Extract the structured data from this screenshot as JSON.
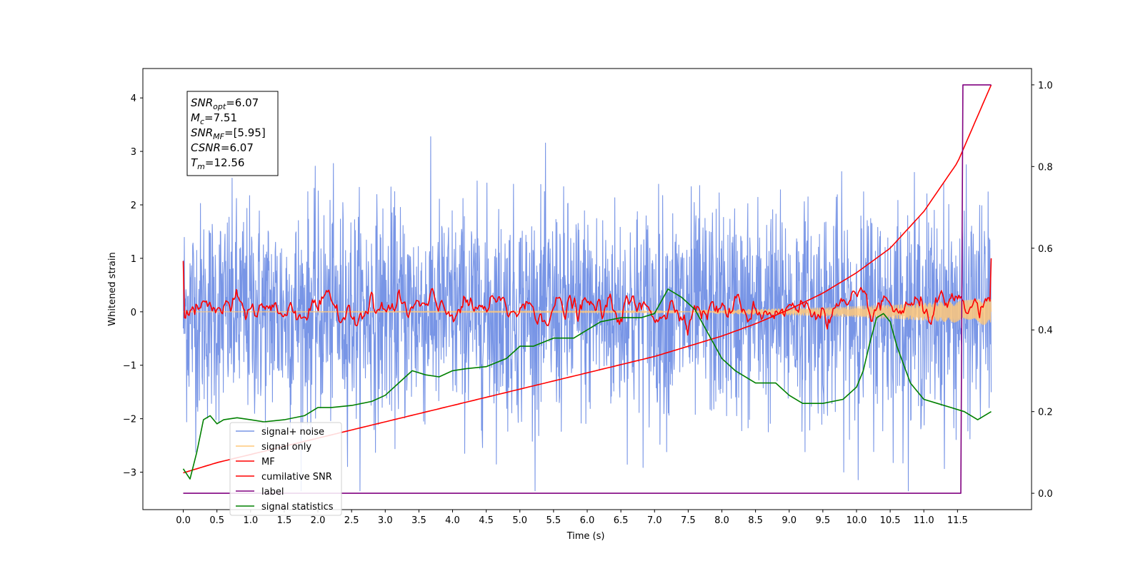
{
  "chart_data": {
    "type": "line",
    "title": "",
    "xlabel": "Time (s)",
    "ylabel": "Whitened strain",
    "xlim": [
      -0.6,
      12.6
    ],
    "ylim": [
      -3.7,
      4.55
    ],
    "y2lim": [
      -0.04,
      1.04
    ],
    "xticks": [
      "0.0",
      "0.5",
      "1.0",
      "1.5",
      "2.0",
      "2.5",
      "3.0",
      "3.5",
      "4.0",
      "4.5",
      "5.0",
      "5.5",
      "6.0",
      "6.5",
      "7.0",
      "7.5",
      "8.0",
      "8.5",
      "9.0",
      "9.5",
      "10.0",
      "10.5",
      "11.0",
      "11.5"
    ],
    "yticks": [
      "−3",
      "−2",
      "−1",
      "0",
      "1",
      "2",
      "3",
      "4"
    ],
    "y2ticks": [
      "0.0",
      "0.2",
      "0.4",
      "0.6",
      "0.8",
      "1.0"
    ],
    "legend_position": "lower-left",
    "annotation": {
      "lines": [
        {
          "sym": "SNR",
          "sub": "opt",
          "val": "=6.07"
        },
        {
          "sym": "M",
          "sub": "c",
          "val": "=7.51"
        },
        {
          "sym": "SNR",
          "sub": "MF",
          "val": "=[5.95]"
        },
        {
          "sym": "CSNR",
          "sub": "",
          "val": "=6.07"
        },
        {
          "sym": "T",
          "sub": "m",
          "val": "=12.56"
        }
      ]
    },
    "series": [
      {
        "name": "signal+ noise",
        "color": "#7895e6",
        "axis": "left",
        "kind": "noise",
        "x_range": [
          0,
          12
        ],
        "amplitude": 1.0
      },
      {
        "name": "signal only",
        "color": "#ffc87a",
        "axis": "left",
        "kind": "chirp",
        "x_range": [
          0,
          12
        ],
        "envelope_x": [
          0,
          7.5,
          9,
          10,
          11,
          11.5,
          12
        ],
        "envelope_y": [
          0.0,
          0.02,
          0.06,
          0.1,
          0.16,
          0.2,
          0.25
        ]
      },
      {
        "name": "MF",
        "color": "#ff0000",
        "axis": "left",
        "kind": "mf",
        "x_range": [
          0,
          12
        ]
      },
      {
        "name": "cumilative SNR",
        "color": "#ff0000",
        "axis": "right",
        "x": [
          0,
          0.5,
          1,
          1.5,
          2,
          2.5,
          3,
          3.5,
          4,
          4.5,
          5,
          5.5,
          6,
          6.5,
          7,
          7.5,
          8,
          8.5,
          9,
          9.5,
          10,
          10.5,
          11,
          11.5,
          12
        ],
        "y": [
          0.05,
          0.075,
          0.095,
          0.115,
          0.135,
          0.155,
          0.175,
          0.195,
          0.215,
          0.235,
          0.255,
          0.275,
          0.295,
          0.315,
          0.335,
          0.36,
          0.385,
          0.415,
          0.45,
          0.49,
          0.54,
          0.6,
          0.69,
          0.81,
          1.0
        ]
      },
      {
        "name": "label",
        "color": "#800080",
        "axis": "right",
        "x": [
          0,
          11.55,
          11.58,
          12
        ],
        "y": [
          0,
          0,
          1,
          1
        ]
      },
      {
        "name": "signal statistics",
        "color": "#008000",
        "axis": "right",
        "x": [
          0,
          0.1,
          0.2,
          0.3,
          0.4,
          0.5,
          0.6,
          0.8,
          1.0,
          1.2,
          1.5,
          1.8,
          2.0,
          2.2,
          2.5,
          2.8,
          3.0,
          3.2,
          3.4,
          3.6,
          3.8,
          4.0,
          4.2,
          4.5,
          4.8,
          5.0,
          5.2,
          5.5,
          5.8,
          6.0,
          6.2,
          6.5,
          6.8,
          7.0,
          7.2,
          7.4,
          7.6,
          7.8,
          8.0,
          8.2,
          8.5,
          8.8,
          9.0,
          9.2,
          9.5,
          9.8,
          10.0,
          10.1,
          10.2,
          10.3,
          10.4,
          10.5,
          10.6,
          10.8,
          11.0,
          11.2,
          11.4,
          11.6,
          11.8,
          12.0
        ],
        "y": [
          0.06,
          0.035,
          0.1,
          0.18,
          0.19,
          0.17,
          0.18,
          0.185,
          0.18,
          0.175,
          0.18,
          0.19,
          0.21,
          0.21,
          0.215,
          0.225,
          0.24,
          0.27,
          0.3,
          0.29,
          0.285,
          0.3,
          0.305,
          0.31,
          0.33,
          0.36,
          0.36,
          0.38,
          0.38,
          0.4,
          0.42,
          0.43,
          0.43,
          0.44,
          0.5,
          0.48,
          0.45,
          0.39,
          0.33,
          0.3,
          0.27,
          0.27,
          0.24,
          0.22,
          0.22,
          0.23,
          0.26,
          0.3,
          0.37,
          0.43,
          0.44,
          0.42,
          0.36,
          0.27,
          0.23,
          0.22,
          0.21,
          0.2,
          0.18,
          0.2
        ]
      }
    ]
  }
}
